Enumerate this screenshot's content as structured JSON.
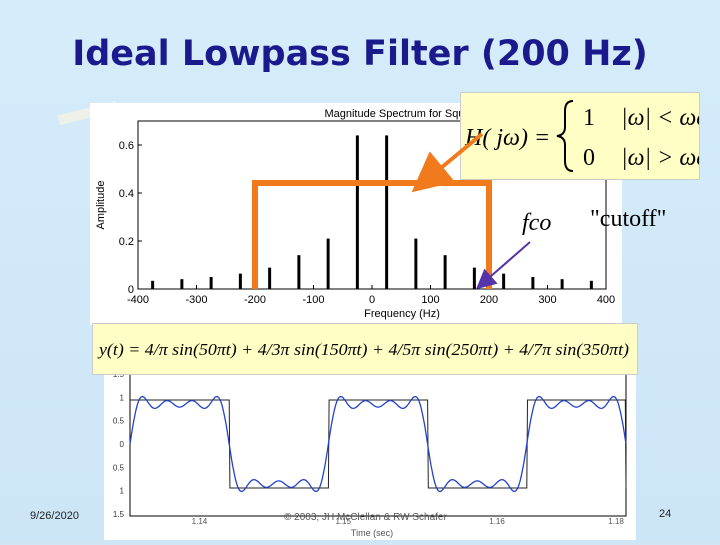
{
  "title": "Ideal Lowpass Filter (200 Hz)",
  "footer": {
    "date": "9/26/2020",
    "copyright": "© 2003, JH McClellan & RW Schafer",
    "page": "24"
  },
  "annotations": {
    "H_lhs": "H( jω) =",
    "case1_value": "1",
    "case1_cond": "|ω| < ωco",
    "case2_value": "0",
    "case2_cond": "|ω| > ωco",
    "fco": "fco",
    "cutoff": "\"cutoff\"",
    "y_equation": "y(t) = 4/π sin(50πt) + 4/3π sin(150πt) + 4/5π sin(250πt) + 4/7π sin(350πt)"
  },
  "colors": {
    "filter_outline": "#f07a1c",
    "title": "#1a1a8c",
    "wave": "#2343c8",
    "square": "#222222"
  },
  "chart_data": [
    {
      "type": "bar",
      "title": "Magnitude Spectrum for Square Wa",
      "xlabel": "Frequency (Hz)",
      "ylabel": "Amplitude",
      "x": [
        -375,
        -325,
        -275,
        -225,
        -175,
        -125,
        -75,
        -25,
        25,
        75,
        125,
        175,
        225,
        275,
        325,
        375
      ],
      "values": [
        0.034,
        0.041,
        0.05,
        0.064,
        0.089,
        0.141,
        0.21,
        0.64,
        0.64,
        0.21,
        0.141,
        0.089,
        0.064,
        0.05,
        0.041,
        0.034
      ],
      "xlim": [
        -400,
        400
      ],
      "ylim": [
        0,
        0.7
      ],
      "xticks": [
        "-400",
        "-300",
        "-200",
        "-100",
        "0",
        "100",
        "200",
        "300",
        "400"
      ],
      "yticks": [
        "0",
        "0.2",
        "0.4",
        "0.6"
      ],
      "filter_band": [
        -200,
        200
      ]
    },
    {
      "type": "line",
      "xlabel": "Time (sec)",
      "xticks": [
        "1.14",
        "1.15",
        "1.16",
        "1.18"
      ],
      "yticks": [
        "1.5",
        "1",
        "0.5",
        "0",
        "0.5",
        "1",
        "1.5"
      ],
      "series": [
        {
          "harmonics_hz": [
            25,
            75,
            125,
            175
          ],
          "amplitudes": [
            1.273,
            0.424,
            0.255,
            0.182
          ]
        }
      ]
    }
  ]
}
